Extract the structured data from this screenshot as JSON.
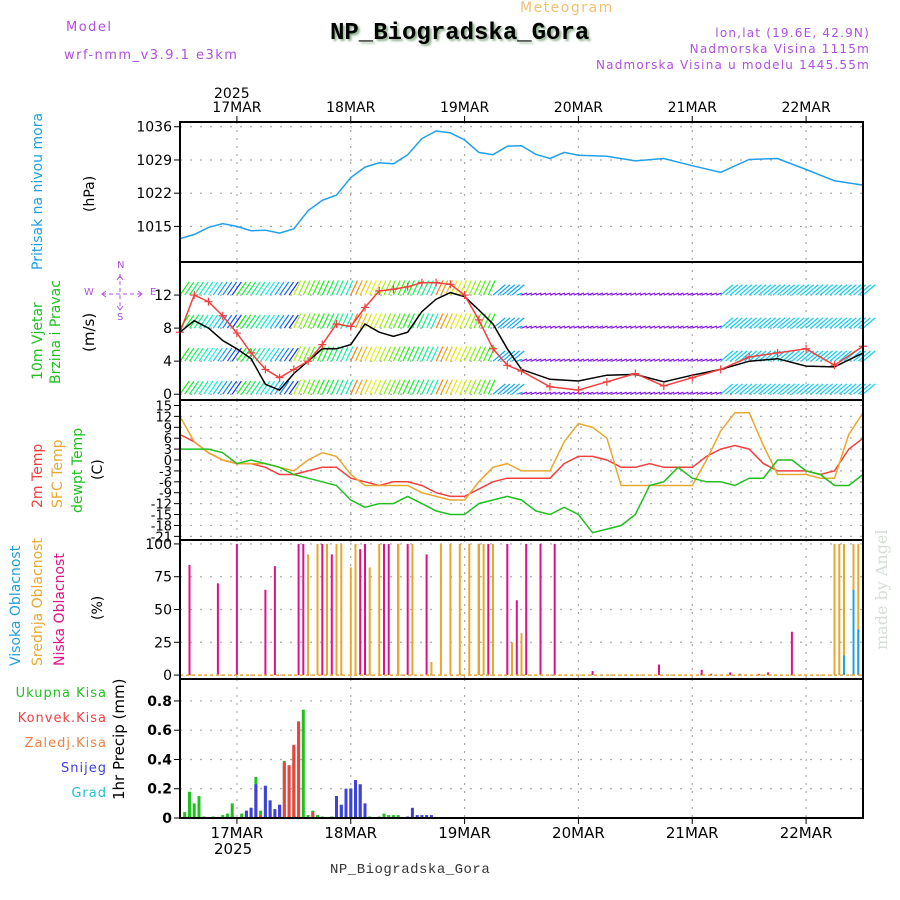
{
  "header": {
    "model_label": "Model",
    "model_name": "wrf-nmm_v3.9.1 e3km",
    "title": "NP_Biogradska_Gora",
    "subtitle": "Meteogram",
    "lonlat": "lon,lat (19.6E, 42.9N)",
    "elevation": "Nadmorska Visina 1115m",
    "model_elevation": "Nadmorska Visina u modelu 1445.55m"
  },
  "footer": {
    "station": "NP_Biogradska_Gora",
    "watermark": "made by Angel"
  },
  "time_axis": {
    "year": "2025",
    "days": [
      "17MAR",
      "18MAR",
      "19MAR",
      "20MAR",
      "21MAR",
      "22MAR"
    ],
    "start_hours_before_first_day": 12,
    "end_hours_after_last_day": 12
  },
  "panels": {
    "pressure": {
      "label": "Pritisak na nivou mora",
      "unit": "(hPa)",
      "label_color": "#20a0e0"
    },
    "wind": {
      "label1": "10m Vjetar",
      "label2": "Brzina i Pravac",
      "unit": "(m/s)",
      "label_color": "#20c020",
      "compass": {
        "n": "N",
        "s": "S",
        "w": "W",
        "e": "E"
      }
    },
    "temperature": {
      "label_2m": "2m Temp",
      "label_sfc": "SFC Temp",
      "label_dewpt": "dewpt Temp",
      "unit": "(C)"
    },
    "cloud": {
      "label_high": "Visoka Oblacnost",
      "label_mid": "Srednja Oblacnost",
      "label_low": "Niska Oblacnost",
      "unit": "(%)"
    },
    "precip": {
      "axis_label": "1hr Precip (mm)",
      "legend": [
        {
          "label": "Ukupna Kisa",
          "color": "#20c020"
        },
        {
          "label": "Konvek.Kisa",
          "color": "#f04040"
        },
        {
          "label": "Zaledj.Kisa",
          "color": "#f08040"
        },
        {
          "label": "Snijeg",
          "color": "#4040e0"
        },
        {
          "label": "Grad",
          "color": "#20c0d0"
        }
      ]
    }
  },
  "chart_data": [
    {
      "type": "line",
      "title": "Pritisak na nivou mora",
      "ylabel": "(hPa)",
      "yticks": [
        1015,
        1022,
        1029,
        1036
      ],
      "ylim": [
        1007.5,
        1037
      ],
      "grid": true,
      "x_hours": [
        0,
        3,
        6,
        9,
        12,
        15,
        18,
        21,
        24,
        27,
        30,
        33,
        36,
        39,
        42,
        45,
        48,
        51,
        54,
        57,
        60,
        63,
        66,
        69,
        72,
        75,
        78,
        81,
        84,
        90,
        96,
        102,
        108,
        114,
        120,
        126,
        132,
        138,
        144
      ],
      "series": [
        {
          "name": "MSLP",
          "color": "#20a0e8",
          "values": [
            1012.4,
            1013.3,
            1014.8,
            1015.6,
            1015.0,
            1014.1,
            1014.2,
            1013.6,
            1014.5,
            1018.3,
            1020.5,
            1021.6,
            1025.3,
            1027.5,
            1028.4,
            1028.2,
            1030.1,
            1033.5,
            1035.1,
            1034.7,
            1033.2,
            1030.6,
            1030.1,
            1031.9,
            1032.0,
            1030.2,
            1029.3,
            1030.6,
            1030.0,
            1029.8,
            1028.8,
            1029.3,
            1027.8,
            1026.4,
            1029.1,
            1029.3,
            1027.0,
            1024.6,
            1023.7
          ]
        }
      ]
    },
    {
      "type": "line",
      "title": "10m Vjetar Brzina i Pravac",
      "ylabel": "(m/s)",
      "yticks": [
        0,
        4,
        8,
        12
      ],
      "ylim": [
        -0.7,
        16
      ],
      "grid": true,
      "x_hours": [
        0,
        3,
        6,
        9,
        12,
        15,
        18,
        21,
        24,
        27,
        30,
        33,
        36,
        39,
        42,
        45,
        48,
        51,
        54,
        57,
        60,
        63,
        66,
        69,
        72,
        78,
        84,
        90,
        96,
        102,
        108,
        114,
        120,
        126,
        132,
        138,
        144
      ],
      "series": [
        {
          "name": "wind speed",
          "color": "#000000",
          "values": [
            7.5,
            8.9,
            8.0,
            6.5,
            5.5,
            4.3,
            1.2,
            0.5,
            2.5,
            4.0,
            5.5,
            5.5,
            6.0,
            8.5,
            7.5,
            7.0,
            7.5,
            10.0,
            11.5,
            12.3,
            11.8,
            10.2,
            8.5,
            5.5,
            3.0,
            1.8,
            1.6,
            2.3,
            2.4,
            1.5,
            2.3,
            3.0,
            4.0,
            4.3,
            3.4,
            3.3,
            5.0
          ]
        },
        {
          "name": "wind gust",
          "color": "#f04040",
          "values": [
            7.5,
            12.0,
            11.2,
            9.5,
            7.4,
            5.0,
            3.0,
            2.0,
            3.0,
            4.0,
            6.0,
            8.5,
            8.2,
            10.5,
            12.5,
            12.7,
            13.0,
            13.5,
            13.5,
            13.3,
            12.0,
            9.0,
            5.5,
            3.5,
            2.8,
            0.9,
            0.5,
            1.5,
            2.5,
            1.0,
            2.0,
            3.0,
            4.5,
            5.0,
            5.5,
            3.5,
            5.8
          ]
        }
      ],
      "barb_rows_ms": [
        0,
        4,
        8,
        12
      ]
    },
    {
      "type": "line",
      "title": "Temperature",
      "ylabel": "(C)",
      "yticks": [
        15,
        12,
        9,
        6,
        3,
        0,
        -3,
        -6,
        -9,
        -12,
        -15,
        -18,
        -21
      ],
      "ylim": [
        -22,
        16.5
      ],
      "grid": true,
      "x_hours": [
        0,
        3,
        6,
        9,
        12,
        15,
        18,
        21,
        24,
        27,
        30,
        33,
        36,
        39,
        42,
        45,
        48,
        51,
        54,
        57,
        60,
        63,
        66,
        69,
        72,
        75,
        78,
        81,
        84,
        87,
        90,
        93,
        96,
        99,
        102,
        105,
        108,
        111,
        114,
        117,
        120,
        123,
        126,
        129,
        132,
        135,
        138,
        141,
        144
      ],
      "series": [
        {
          "name": "2m Temp",
          "color": "#f04040",
          "values": [
            7,
            5,
            2,
            0,
            -1,
            -1,
            -2,
            -4,
            -4,
            -3,
            -2,
            -2,
            -5,
            -6,
            -7,
            -6,
            -6,
            -7,
            -9,
            -10,
            -10,
            -8,
            -6,
            -5,
            -5,
            -5,
            -5,
            -1,
            1,
            1,
            0,
            -2,
            -2,
            -1,
            -2,
            -2,
            -2,
            1,
            3,
            4,
            3,
            -1,
            -3,
            -3,
            -3,
            -4,
            -3,
            3,
            6
          ]
        },
        {
          "name": "SFC Temp",
          "color": "#e8a830",
          "values": [
            12,
            5,
            2,
            0,
            -1,
            -1,
            -1,
            -2,
            -3,
            0,
            2,
            1,
            -4,
            -7,
            -7,
            -7,
            -7,
            -9,
            -10,
            -11,
            -11,
            -6,
            -2,
            -1,
            -3,
            -3,
            -3,
            5,
            10,
            9,
            6,
            -7,
            -7,
            -7,
            -7,
            -7,
            -7,
            0,
            8,
            13,
            13,
            4,
            -4,
            -4,
            -4,
            -5,
            -5,
            7,
            13
          ]
        },
        {
          "name": "dewpt Temp",
          "color": "#20c020",
          "values": [
            3,
            3,
            3,
            2,
            -1,
            0,
            -1,
            -2,
            -4,
            -5,
            -6,
            -7,
            -11,
            -13,
            -12,
            -12,
            -10,
            -12,
            -14,
            -15,
            -15,
            -12,
            -11,
            -10,
            -11,
            -14,
            -15,
            -13,
            -15,
            -20,
            -19,
            -18,
            -15,
            -7,
            -6,
            -2,
            -5,
            -6,
            -6,
            -7,
            -5,
            -5,
            0,
            0,
            -3,
            -4,
            -7,
            -7,
            -4
          ]
        }
      ]
    },
    {
      "type": "bar",
      "title": "Oblacnost",
      "ylabel": "(%)",
      "yticks": [
        0,
        25,
        50,
        75,
        100
      ],
      "ylim": [
        -3,
        103
      ],
      "grid": true,
      "series": [
        {
          "name": "Niska Oblacnost",
          "color": "#e0108a",
          "x_hours": [
            2,
            6,
            8,
            12,
            14,
            18,
            20,
            25,
            26,
            30,
            32,
            35,
            38,
            39,
            41,
            43,
            44,
            46,
            47,
            48,
            52,
            56,
            58,
            59,
            63,
            65,
            69,
            71,
            73,
            76,
            79,
            84,
            87,
            94,
            96,
            101,
            110,
            112,
            113,
            116,
            118,
            122,
            124,
            128,
            129,
            134,
            136,
            140,
            141,
            144
          ],
          "values": [
            84,
            0,
            70,
            100,
            0,
            65,
            83,
            100,
            100,
            100,
            92,
            0,
            96,
            100,
            0,
            100,
            100,
            100,
            0,
            100,
            92,
            0,
            0,
            0,
            100,
            100,
            100,
            57,
            100,
            100,
            100,
            0,
            3,
            0,
            0,
            8,
            4,
            1,
            0,
            2,
            1,
            1,
            2,
            0,
            33,
            0,
            0,
            2,
            0,
            5
          ]
        },
        {
          "name": "Srednja Oblacnost",
          "color": "#e8a830",
          "x_hours": [
            27,
            29,
            31,
            33,
            34,
            36,
            37,
            40,
            42,
            45,
            46,
            48,
            49,
            51,
            53,
            55,
            57,
            59,
            61,
            63,
            64,
            66,
            70,
            72,
            138,
            139,
            140,
            141,
            142,
            143,
            144
          ],
          "values": [
            92,
            100,
            100,
            100,
            100,
            82,
            100,
            82,
            100,
            0,
            100,
            0,
            100,
            0,
            10,
            100,
            100,
            100,
            100,
            100,
            100,
            100,
            25,
            32,
            100,
            100,
            100,
            0,
            100,
            100,
            100
          ]
        },
        {
          "name": "Visoka Oblacnost",
          "color": "#20a0e0",
          "x_hours": [
            140,
            141,
            142,
            143,
            144
          ],
          "values": [
            15,
            0,
            65,
            35,
            100
          ]
        }
      ]
    },
    {
      "type": "bar",
      "title": "1hr Precip",
      "ylabel": "1hr Precip (mm)",
      "yticks": [
        0,
        0.2,
        0.4,
        0.6,
        0.8
      ],
      "ylim": [
        0,
        0.95
      ],
      "grid": true,
      "series": [
        {
          "name": "Ukupna Kisa",
          "color": "#20c020",
          "x_hours": [
            1,
            2,
            3,
            4,
            5,
            7,
            9,
            10,
            11,
            13,
            14,
            15,
            16,
            17,
            18,
            19,
            20,
            21,
            22,
            23,
            24,
            25,
            26,
            27,
            28,
            29,
            30,
            32,
            33,
            34,
            35,
            36,
            37,
            38,
            39,
            40,
            41,
            42,
            43,
            44,
            45,
            46,
            47,
            58,
            59,
            60,
            61,
            62,
            63,
            64
          ],
          "values": [
            0.04,
            0.18,
            0.1,
            0.15,
            0.01,
            0.01,
            0.02,
            0.03,
            0.1,
            0.03,
            0.05,
            0.07,
            0.28,
            0.05,
            0.22,
            0.12,
            0.06,
            0.09,
            0.39,
            0.36,
            0.49,
            0.66,
            0.74,
            0.02,
            0.05,
            0.02,
            0.01,
            0.01,
            0.15,
            0.09,
            0.2,
            0.2,
            0.26,
            0.23,
            0.1,
            0.01,
            0.0,
            0.01,
            0.03,
            0.02,
            0.02,
            0.02,
            0.0,
            0.0,
            0.0,
            0.0,
            0.0,
            0.0,
            0.0,
            0.0
          ]
        },
        {
          "name": "Konvek.Kisa",
          "color": "#f04040",
          "x_hours": [
            16,
            17,
            19,
            21,
            22,
            23,
            24,
            25,
            28
          ],
          "values": [
            0.2,
            0.02,
            0.05,
            0.09,
            0.38,
            0.36,
            0.5,
            0.66,
            0.04
          ]
        },
        {
          "name": "Snijeg",
          "color": "#4040e0",
          "x_hours": [
            14,
            15,
            16,
            18,
            19,
            20,
            21,
            33,
            34,
            35,
            36,
            37,
            38,
            39,
            48,
            49,
            50,
            51,
            52,
            53
          ],
          "values": [
            0.05,
            0.07,
            0.23,
            0.22,
            0.12,
            0.06,
            0.09,
            0.15,
            0.09,
            0.2,
            0.2,
            0.26,
            0.23,
            0.1,
            0.01,
            0.07,
            0.02,
            0.02,
            0.02,
            0.02
          ]
        }
      ]
    }
  ]
}
